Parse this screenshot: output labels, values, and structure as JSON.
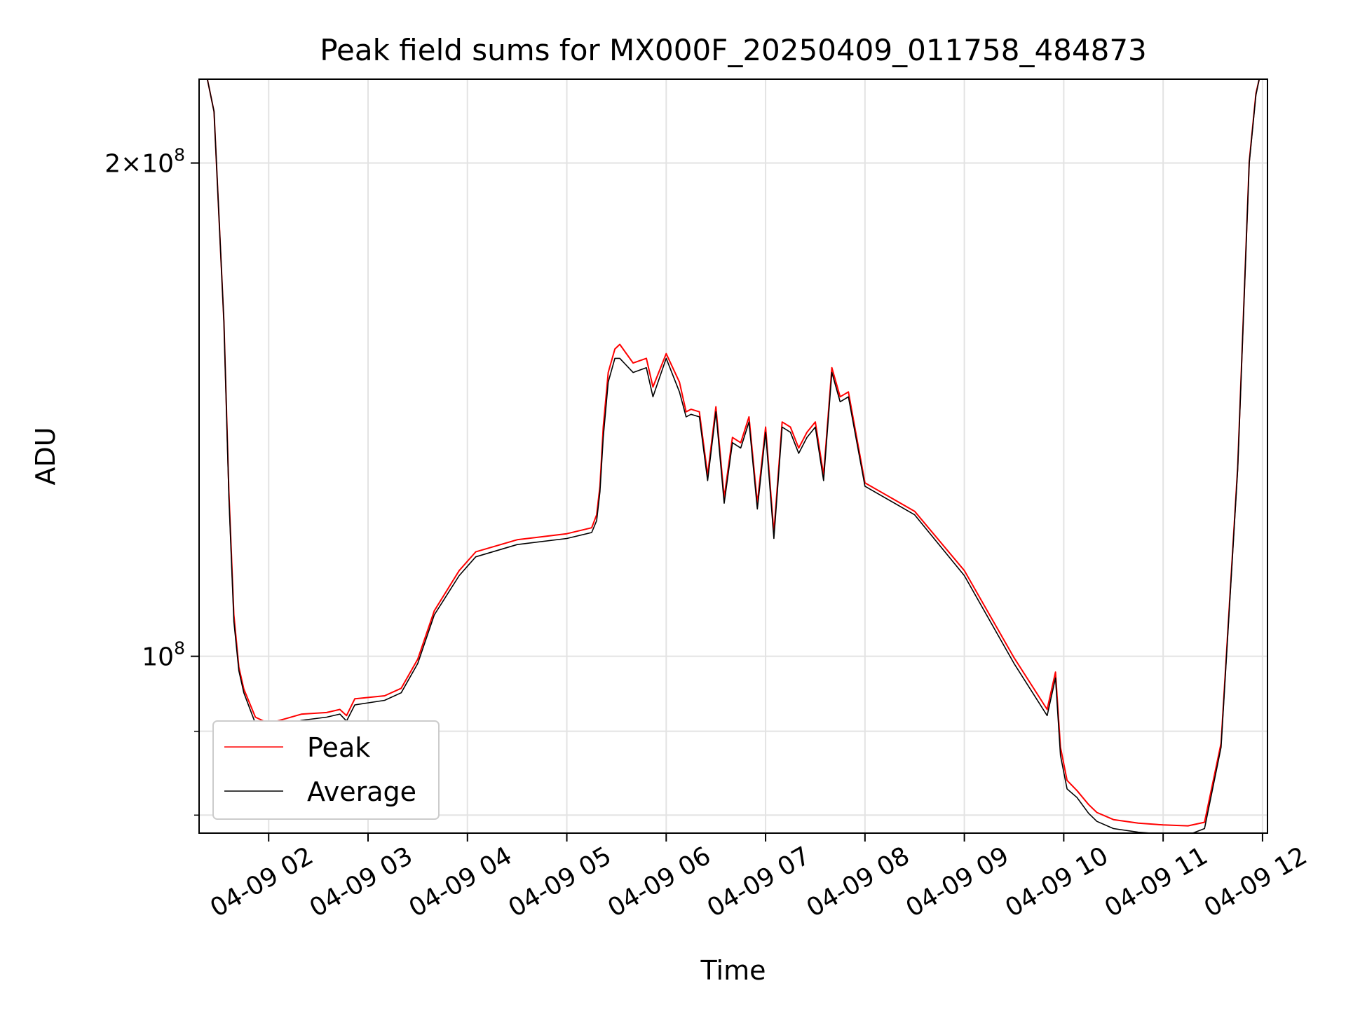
{
  "chart_data": {
    "type": "line",
    "title": "Peak field sums for MX000F_20250409_011758_484873",
    "xlabel": "Time",
    "ylabel": "ADU",
    "y_scale": "log",
    "ylim": [
      78000000,
      225000000
    ],
    "xlim": [
      "04-09 01:18",
      "04-09 12:03"
    ],
    "x_tick_labels": [
      "04-09 02",
      "04-09 03",
      "04-09 04",
      "04-09 05",
      "04-09 06",
      "04-09 07",
      "04-09 08",
      "04-09 09",
      "04-09 10",
      "04-09 11",
      "04-09 12"
    ],
    "x_tick_values": [
      "04-09 02:00",
      "04-09 03:00",
      "04-09 04:00",
      "04-09 05:00",
      "04-09 06:00",
      "04-09 07:00",
      "04-09 08:00",
      "04-09 09:00",
      "04-09 10:00",
      "04-09 11:00",
      "04-09 12:00"
    ],
    "y_ticks": [
      {
        "value": 200000000,
        "label": "2×10",
        "exp": "8"
      },
      {
        "value": 100000000,
        "label": "10",
        "exp": "8"
      }
    ],
    "y_minor_grid": [
      80000000,
      90000000
    ],
    "grid": true,
    "legend": {
      "position": "lower-left",
      "entries": [
        "Peak",
        "Average"
      ]
    },
    "series": [
      {
        "name": "Average",
        "color": "#000000",
        "x": [
          "04-09 01:18",
          "04-09 01:23",
          "04-09 01:27",
          "04-09 01:33",
          "04-09 01:36",
          "04-09 01:39",
          "04-09 01:42",
          "04-09 01:45",
          "04-09 01:52",
          "04-09 02:00",
          "04-09 02:10",
          "04-09 02:20",
          "04-09 02:35",
          "04-09 02:43",
          "04-09 02:47",
          "04-09 02:52",
          "04-09 03:10",
          "04-09 03:20",
          "04-09 03:30",
          "04-09 03:40",
          "04-09 03:55",
          "04-09 04:05",
          "04-09 04:30",
          "04-09 05:00",
          "04-09 05:15",
          "04-09 05:18",
          "04-09 05:20",
          "04-09 05:22",
          "04-09 05:25",
          "04-09 05:29",
          "04-09 05:32",
          "04-09 05:40",
          "04-09 05:48",
          "04-09 05:52",
          "04-09 06:00",
          "04-09 06:08",
          "04-09 06:12",
          "04-09 06:15",
          "04-09 06:20",
          "04-09 06:25",
          "04-09 06:30",
          "04-09 06:35",
          "04-09 06:40",
          "04-09 06:45",
          "04-09 06:50",
          "04-09 06:55",
          "04-09 07:00",
          "04-09 07:05",
          "04-09 07:10",
          "04-09 07:15",
          "04-09 07:20",
          "04-09 07:25",
          "04-09 07:30",
          "04-09 07:35",
          "04-09 07:40",
          "04-09 07:45",
          "04-09 07:50",
          "04-09 08:00",
          "04-09 08:30",
          "04-09 09:00",
          "04-09 09:30",
          "04-09 09:50",
          "04-09 09:55",
          "04-09 09:58",
          "04-09 10:02",
          "04-09 10:08",
          "04-09 10:15",
          "04-09 10:20",
          "04-09 10:30",
          "04-09 10:45",
          "04-09 11:00",
          "04-09 11:15",
          "04-09 11:25",
          "04-09 11:35",
          "04-09 11:45",
          "04-09 11:52",
          "04-09 11:56",
          "04-09 11:58"
        ],
        "y": [
          225000000,
          225000000,
          215000000,
          160000000,
          125000000,
          105000000,
          98000000,
          95000000,
          91000000,
          90200000,
          90800000,
          91400000,
          91800000,
          92200000,
          91300000,
          93400000,
          94000000,
          95000000,
          99000000,
          106000000,
          112000000,
          115000000,
          117000000,
          118000000,
          119000000,
          121000000,
          126000000,
          136000000,
          147000000,
          152000000,
          152000000,
          149000000,
          150000000,
          144000000,
          152000000,
          145000000,
          140000000,
          140500000,
          140000000,
          128000000,
          141000000,
          124000000,
          135000000,
          134000000,
          139000000,
          123000000,
          137000000,
          118000000,
          138000000,
          137000000,
          133000000,
          136000000,
          138000000,
          128000000,
          149000000,
          143000000,
          144000000,
          127000000,
          122000000,
          112000000,
          99000000,
          92000000,
          97000000,
          87000000,
          83000000,
          82000000,
          80200000,
          79300000,
          78500000,
          78100000,
          77900000,
          77800000,
          78500000,
          88000000,
          130000000,
          200000000,
          220000000,
          225000000
        ]
      },
      {
        "name": "Peak",
        "color": "#ff0000",
        "x": [
          "04-09 01:18",
          "04-09 01:23",
          "04-09 01:27",
          "04-09 01:33",
          "04-09 01:36",
          "04-09 01:39",
          "04-09 01:42",
          "04-09 01:45",
          "04-09 01:52",
          "04-09 02:00",
          "04-09 02:10",
          "04-09 02:20",
          "04-09 02:35",
          "04-09 02:43",
          "04-09 02:47",
          "04-09 02:52",
          "04-09 03:10",
          "04-09 03:20",
          "04-09 03:30",
          "04-09 03:40",
          "04-09 03:55",
          "04-09 04:05",
          "04-09 04:30",
          "04-09 05:00",
          "04-09 05:15",
          "04-09 05:18",
          "04-09 05:20",
          "04-09 05:22",
          "04-09 05:25",
          "04-09 05:29",
          "04-09 05:32",
          "04-09 05:40",
          "04-09 05:48",
          "04-09 05:52",
          "04-09 06:00",
          "04-09 06:08",
          "04-09 06:12",
          "04-09 06:15",
          "04-09 06:20",
          "04-09 06:25",
          "04-09 06:30",
          "04-09 06:35",
          "04-09 06:40",
          "04-09 06:45",
          "04-09 06:50",
          "04-09 06:55",
          "04-09 07:00",
          "04-09 07:05",
          "04-09 07:10",
          "04-09 07:15",
          "04-09 07:20",
          "04-09 07:25",
          "04-09 07:30",
          "04-09 07:35",
          "04-09 07:40",
          "04-09 07:45",
          "04-09 07:50",
          "04-09 08:00",
          "04-09 08:30",
          "04-09 09:00",
          "04-09 09:30",
          "04-09 09:50",
          "04-09 09:55",
          "04-09 09:58",
          "04-09 10:02",
          "04-09 10:08",
          "04-09 10:15",
          "04-09 10:20",
          "04-09 10:30",
          "04-09 10:45",
          "04-09 11:00",
          "04-09 11:15",
          "04-09 11:25",
          "04-09 11:35",
          "04-09 11:45",
          "04-09 11:52",
          "04-09 11:56",
          "04-09 11:58"
        ],
        "y": [
          225000000,
          225000000,
          215000000,
          160000000,
          126000000,
          106000000,
          98500000,
          95500000,
          91800000,
          91000000,
          91600000,
          92200000,
          92400000,
          92800000,
          92000000,
          94200000,
          94600000,
          95600000,
          99600000,
          106600000,
          112800000,
          115800000,
          117800000,
          118800000,
          119800000,
          122000000,
          127000000,
          138000000,
          149000000,
          154000000,
          155000000,
          151000000,
          152000000,
          146000000,
          153000000,
          147000000,
          141000000,
          141500000,
          141000000,
          129000000,
          142000000,
          125000000,
          136000000,
          135000000,
          140000000,
          124000000,
          138000000,
          119000000,
          139000000,
          138000000,
          134000000,
          137000000,
          139000000,
          129000000,
          150000000,
          144000000,
          145000000,
          127600000,
          122600000,
          112800000,
          99800000,
          92800000,
          97800000,
          88000000,
          84000000,
          82800000,
          81200000,
          80300000,
          79500000,
          79100000,
          78900000,
          78800000,
          79200000,
          88500000,
          130500000,
          200500000,
          220500000,
          225000000
        ]
      }
    ]
  }
}
